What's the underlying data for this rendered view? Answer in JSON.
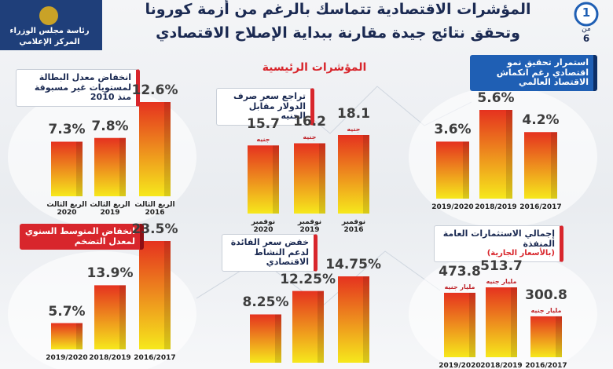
{
  "header": {
    "title_line1": "المؤشرات الاقتصادية تتماسك بالرغم من أزمة كورونا",
    "title_line2": "وتحقق نتائج جيدة مقارنة ببداية الإصلاح الاقتصادي",
    "logo_line1": "رئاسة مجلس الوزراء",
    "logo_line2": "المركز الإعلامي",
    "page_number": "1",
    "page_of": "من",
    "page_total": "6"
  },
  "section_label": "المؤشرات الرئيسية",
  "chart_data": [
    {
      "type": "bar",
      "title": "انخفاض معدل البطالة لمستويات غير مسبوقة منذ 2010",
      "categories": [
        "الربع الثالث 2020",
        "الربع الثالث 2019",
        "الربع الثالث 2016"
      ],
      "values": [
        7.3,
        7.8,
        12.6
      ],
      "value_labels": [
        "7.3%",
        "7.8%",
        "12.6%"
      ],
      "color": [
        "#f6e81c",
        "#e5321f"
      ]
    },
    {
      "type": "bar",
      "title": "تراجع سعر صرف الدولار مقابل الجنيه",
      "categories": [
        "نوفمبر 2020",
        "نوفمبر 2019",
        "نوفمبر 2016"
      ],
      "values": [
        15.7,
        16.2,
        18.1
      ],
      "unit": "جنيه",
      "color": [
        "#f6e81c",
        "#e5321f"
      ]
    },
    {
      "type": "bar",
      "title": "استمرار تحقيق نمو اقتصادي رغم انكماش الاقتصاد العالمي",
      "categories": [
        "2019/2020",
        "2018/2019",
        "2016/2017"
      ],
      "values": [
        3.6,
        5.6,
        4.2
      ],
      "value_labels": [
        "3.6%",
        "5.6%",
        "4.2%"
      ],
      "color": [
        "#f6e81c",
        "#e5321f"
      ]
    },
    {
      "type": "bar",
      "title": "انخفاض المتوسط السنوي لمعدل التضخم",
      "categories": [
        "2019/2020",
        "2018/2019",
        "2016/2017"
      ],
      "values": [
        5.7,
        13.9,
        23.5
      ],
      "value_labels": [
        "5.7%",
        "13.9%",
        "23.5%"
      ],
      "color": [
        "#f6e81c",
        "#e5321f"
      ]
    },
    {
      "type": "bar",
      "title": "خفض سعر الفائدة لدعم النشاط الاقتصادي",
      "values": [
        8.25,
        12.25,
        14.75
      ],
      "value_labels": [
        "8.25%",
        "12.25%",
        "14.75%"
      ],
      "color": [
        "#f6e81c",
        "#e5321f"
      ]
    },
    {
      "type": "bar",
      "title": "إجمالي الاستثمارات العامة المنفذة",
      "subtitle": "(بالأسعار الجارية)",
      "categories": [
        "2019/2020",
        "2018/2019",
        "2016/2017"
      ],
      "values": [
        473.8,
        513.7,
        300.8
      ],
      "unit": "مليار جنيه",
      "color": [
        "#f6e81c",
        "#e5321f"
      ]
    }
  ]
}
